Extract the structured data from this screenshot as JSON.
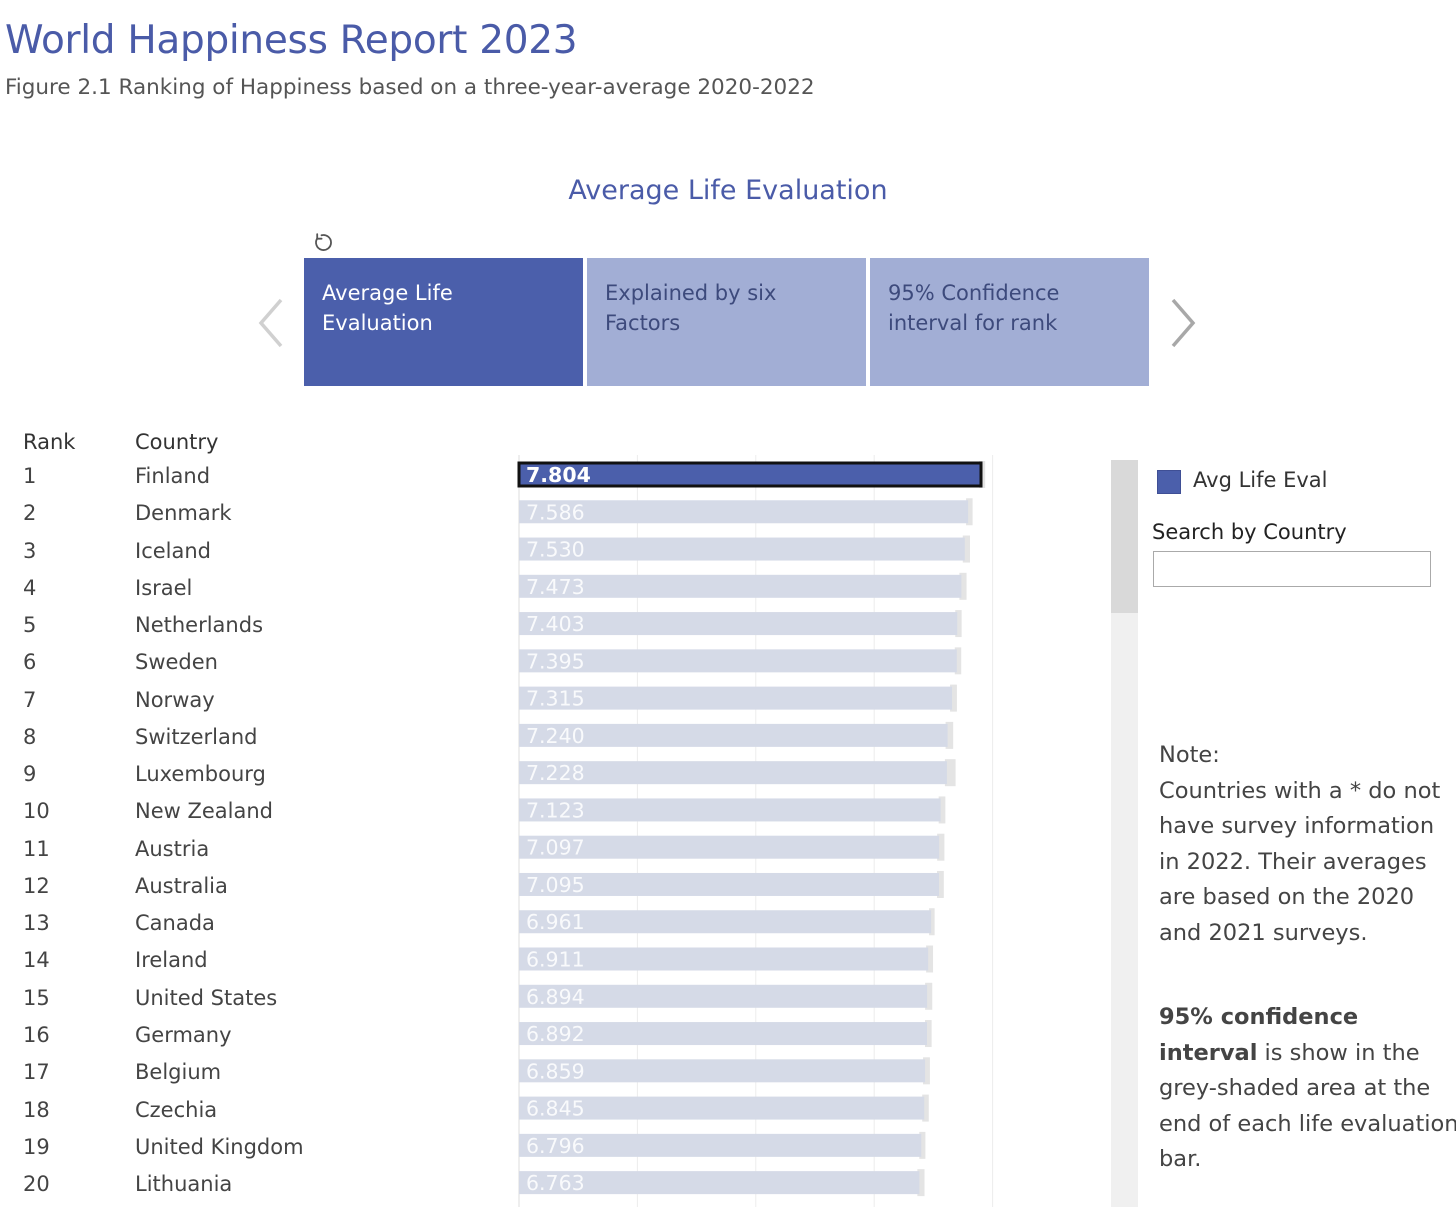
{
  "header": {
    "title": "World Happiness Report 2023",
    "subtitle": "Figure 2.1 Ranking of Happiness based on a three-year-average 2020-2022"
  },
  "view": {
    "section_title": "Average Life Evaluation",
    "reset_icon": "refresh-icon",
    "prev_icon": "chevron-left-icon",
    "next_icon": "chevron-right-icon"
  },
  "tabs": [
    {
      "label": "Average Life Evaluation",
      "active": true
    },
    {
      "label": "Explained by six Factors",
      "active": false
    },
    {
      "label": "95% Confidence interval for rank",
      "active": false
    }
  ],
  "table": {
    "rank_header": "Rank",
    "country_header": "Country"
  },
  "colors": {
    "highlight_bar": "#4b5fab",
    "bar": "#d5dae7",
    "ci_shade": "#e4e4e4",
    "title": "#4a5ba8"
  },
  "chart_data": {
    "type": "bar",
    "orientation": "horizontal",
    "highlighted_category": "Finland",
    "grid": true,
    "categories": [
      "Finland",
      "Denmark",
      "Iceland",
      "Israel",
      "Netherlands",
      "Sweden",
      "Norway",
      "Switzerland",
      "Luxembourg",
      "New Zealand",
      "Austria",
      "Australia",
      "Canada",
      "Ireland",
      "United States",
      "Germany",
      "Belgium",
      "Czechia",
      "United Kingdom",
      "Lithuania"
    ],
    "ranks": [
      1,
      2,
      3,
      4,
      5,
      6,
      7,
      8,
      9,
      10,
      11,
      12,
      13,
      14,
      15,
      16,
      17,
      18,
      19,
      20
    ],
    "values": [
      7.804,
      7.586,
      7.53,
      7.473,
      7.403,
      7.395,
      7.315,
      7.24,
      7.228,
      7.123,
      7.097,
      7.095,
      6.961,
      6.911,
      6.894,
      6.892,
      6.859,
      6.845,
      6.796,
      6.763
    ],
    "labels": [
      "7.804",
      "7.586",
      "7.530",
      "7.473",
      "7.403",
      "7.395",
      "7.315",
      "7.240",
      "7.228",
      "7.123",
      "7.097",
      "7.095",
      "6.961",
      "6.911",
      "6.894",
      "6.892",
      "6.859",
      "6.845",
      "6.796",
      "6.763"
    ],
    "ci_upper": [
      7.875,
      7.662,
      7.618,
      7.56,
      7.477,
      7.47,
      7.397,
      7.334,
      7.375,
      7.202,
      7.186,
      7.176,
      7.021,
      6.994,
      6.981,
      6.97,
      6.941,
      6.922,
      6.865,
      6.85
    ],
    "xlim": [
      0,
      8
    ],
    "legend": {
      "label": "Avg Life Eval",
      "position": "right"
    }
  },
  "sidebar": {
    "search_label": "Search by Country",
    "search_value": "",
    "note_heading": "Note:",
    "note_body": "Countries with a * do not have survey information in 2022. Their averages are based on the 2020 and 2021 surveys.",
    "ci_bold": "95% confidence interval",
    "ci_text": " is show in the grey-shaded area at the end of each life evaluation bar."
  }
}
